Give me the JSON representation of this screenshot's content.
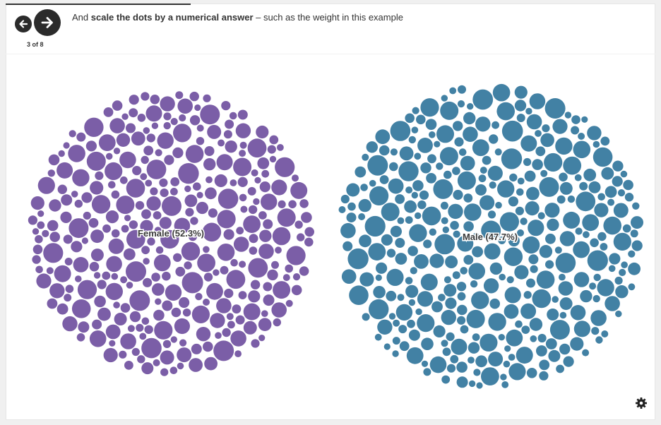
{
  "slideshow": {
    "counter": "3 of 8",
    "caption_prefix": "And ",
    "caption_bold": "scale the dots by a numerical answer",
    "caption_suffix": " – such as the weight in this example"
  },
  "icons": {
    "prev": "arrow-left-icon",
    "next": "arrow-right-icon",
    "settings": "gear-icon"
  },
  "chart_data": {
    "type": "scatter",
    "subtype": "packed-bubble",
    "title": "",
    "groups": [
      {
        "name": "Female",
        "label": "Female (52.3%)",
        "percent": 52.3,
        "color": "#7b5ea7"
      },
      {
        "name": "Male",
        "label": "Male (47.7%)",
        "percent": 47.7,
        "color": "#4281a4"
      }
    ],
    "size_encoding": "weight"
  }
}
